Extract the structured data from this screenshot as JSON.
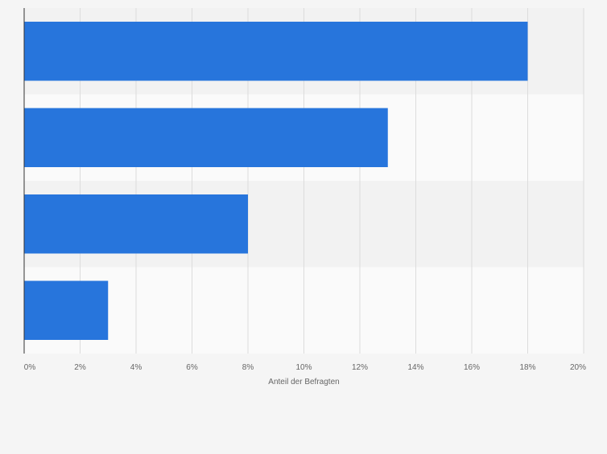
{
  "chart_data": {
    "type": "bar",
    "orientation": "horizontal",
    "categories": [
      "",
      "",
      "",
      ""
    ],
    "values": [
      18,
      13,
      8,
      3
    ],
    "title": "",
    "xlabel": "Anteil der Befragten",
    "ylabel": "",
    "xlim": [
      0,
      20
    ],
    "x_ticks": [
      0,
      2,
      4,
      6,
      8,
      10,
      12,
      14,
      16,
      18,
      20
    ],
    "x_tick_labels": [
      "0%",
      "2%",
      "4%",
      "6%",
      "8%",
      "10%",
      "12%",
      "14%",
      "16%",
      "18%",
      "20%"
    ],
    "grid": true,
    "legend": "none",
    "colors": {
      "bar": "#2775dc",
      "band_dark": "#f2f2f2",
      "band_light": "#fafafa",
      "grid": "#dcdcdc",
      "axis": "#333333",
      "text": "#666666",
      "background": "#f5f5f5"
    }
  }
}
